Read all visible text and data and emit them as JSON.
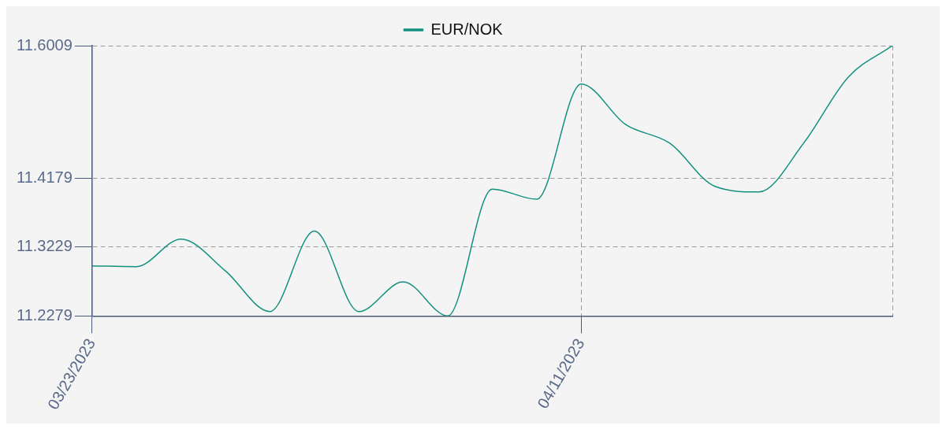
{
  "chart_data": {
    "type": "line",
    "categories": [
      "03/23/2023",
      null,
      null,
      null,
      null,
      null,
      null,
      null,
      null,
      null,
      null,
      "04/11/2023",
      null,
      null,
      null,
      null,
      null,
      null,
      null
    ],
    "series": [
      {
        "name": "EUR/NOK",
        "color": "#13917f",
        "values": [
          11.297,
          11.296,
          11.334,
          11.29,
          11.234,
          11.345,
          11.234,
          11.275,
          11.2279,
          11.403,
          11.389,
          11.548,
          11.492,
          11.466,
          11.407,
          11.399,
          11.466,
          11.557,
          11.6009
        ]
      }
    ],
    "ylim": [
      11.2279,
      11.6009
    ],
    "yticks": [
      11.2279,
      11.3229,
      11.4179,
      11.6009
    ],
    "grid": true,
    "legend": "top",
    "marker": "none",
    "line_style": "solid"
  }
}
